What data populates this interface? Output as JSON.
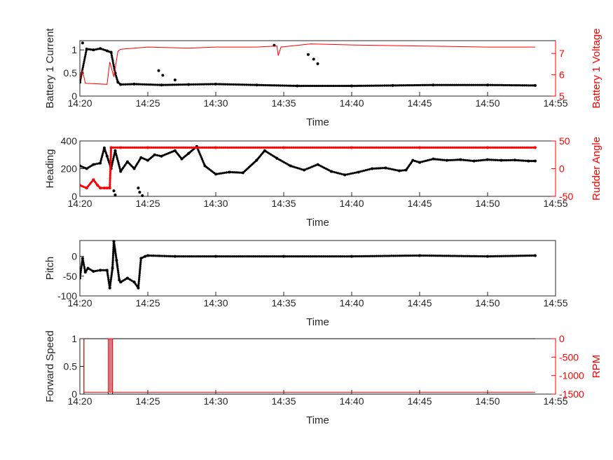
{
  "colors": {
    "left": "#000000",
    "right": "#ff0000",
    "axis": "#262626"
  },
  "chart_data": [
    {
      "type": "scatter",
      "xlabel": "Time",
      "xticks": [
        "14:20",
        "14:25",
        "14:30",
        "14:35",
        "14:40",
        "14:45",
        "14:50",
        "14:55"
      ],
      "xlim": [
        "14:20",
        "14:55"
      ],
      "left": {
        "ylabel": "Battery 1 Current",
        "ylim": [
          0,
          1.2
        ],
        "ticks": [
          0,
          0.5,
          1
        ],
        "ticklabels": [
          "0",
          "0.5",
          "1"
        ]
      },
      "right": {
        "ylabel": "Battery 1 Voltage",
        "ylim": [
          5,
          7.6
        ],
        "ticks": [
          5,
          6,
          7
        ],
        "ticklabels": [
          "5",
          "6",
          "7"
        ]
      },
      "series": [
        {
          "axis": "left",
          "style": "dots",
          "color": "#000000",
          "x": [
            "14:20",
            "14:20.5",
            "14:21",
            "14:21.5",
            "14:22",
            "14:22.3",
            "14:22.6",
            "14:22.8",
            "14:23",
            "14:24",
            "14:26",
            "14:28",
            "14:30",
            "14:33",
            "14:36",
            "14:40",
            "14:43",
            "14:46",
            "14:50",
            "14:53.5"
          ],
          "y": [
            0.3,
            1.02,
            1.0,
            1.03,
            0.98,
            0.95,
            0.5,
            0.3,
            0.25,
            0.26,
            0.24,
            0.25,
            0.26,
            0.24,
            0.22,
            0.22,
            0.23,
            0.24,
            0.24,
            0.23
          ]
        },
        {
          "axis": "left",
          "style": "scatter",
          "color": "#000000",
          "x": [
            "14:20.2",
            "14:25.8",
            "14:26.1",
            "14:27",
            "14:34.3",
            "14:36.8",
            "14:37.2",
            "14:37.5"
          ],
          "y": [
            1.15,
            0.55,
            0.45,
            0.35,
            1.1,
            0.9,
            0.8,
            0.7
          ]
        },
        {
          "axis": "right",
          "style": "line",
          "color": "#ff0000",
          "x": [
            "14:20",
            "14:20.2",
            "14:20.4",
            "14:22",
            "14:22.2",
            "14:22.5",
            "14:22.8",
            "14:23",
            "14:25",
            "14:28",
            "14:30",
            "14:33",
            "14:34.5",
            "14:34.6",
            "14:34.8",
            "14:37",
            "14:40",
            "14:45",
            "14:50",
            "14:53.5"
          ],
          "y": [
            5.8,
            6.2,
            5.6,
            5.55,
            6.6,
            5.9,
            7.1,
            7.2,
            7.3,
            7.25,
            7.3,
            7.3,
            7.35,
            6.9,
            7.3,
            7.45,
            7.4,
            7.35,
            7.3,
            7.3
          ]
        }
      ]
    },
    {
      "type": "scatter",
      "xlabel": "Time",
      "xticks": [
        "14:20",
        "14:25",
        "14:30",
        "14:35",
        "14:40",
        "14:45",
        "14:50",
        "14:55"
      ],
      "xlim": [
        "14:20",
        "14:55"
      ],
      "left": {
        "ylabel": "Heading",
        "ylim": [
          0,
          400
        ],
        "ticks": [
          0,
          200,
          400
        ],
        "ticklabels": [
          "0",
          "200",
          "400"
        ]
      },
      "right": {
        "ylabel": "Rudder Angle",
        "ylim": [
          -50,
          50
        ],
        "ticks": [
          -50,
          0,
          50
        ],
        "ticklabels": [
          "-50",
          "0",
          "50"
        ]
      },
      "series": [
        {
          "axis": "left",
          "style": "dots",
          "color": "#000000",
          "x": [
            "14:20",
            "14:20.5",
            "14:21",
            "14:21.5",
            "14:21.8",
            "14:22",
            "14:22.3",
            "14:22.6",
            "14:23",
            "14:23.5",
            "14:24",
            "14:24.5",
            "14:25",
            "14:25.5",
            "14:26",
            "14:27",
            "14:27.5",
            "14:28",
            "14:28.6",
            "14:29.2",
            "14:30",
            "14:31",
            "14:32",
            "14:33",
            "14:33.6",
            "14:34.5",
            "14:35.5",
            "14:36.5",
            "14:37.5",
            "14:38.5",
            "14:39.5",
            "14:40.5",
            "14:41.5",
            "14:42.5",
            "14:43.5",
            "14:44",
            "14:44.5",
            "14:45",
            "14:46",
            "14:47",
            "14:48",
            "14:49",
            "14:50",
            "14:51",
            "14:52",
            "14:53",
            "14:53.5"
          ],
          "y": [
            220,
            200,
            230,
            240,
            350,
            290,
            200,
            330,
            180,
            250,
            200,
            280,
            260,
            300,
            290,
            330,
            270,
            310,
            360,
            220,
            160,
            175,
            170,
            260,
            330,
            275,
            220,
            190,
            230,
            180,
            155,
            175,
            200,
            205,
            185,
            190,
            260,
            245,
            270,
            260,
            265,
            255,
            265,
            260,
            262,
            255,
            255
          ]
        },
        {
          "axis": "left",
          "style": "scatter",
          "color": "#000000",
          "x": [
            "14:22.5",
            "14:22.6",
            "14:24.3",
            "14:24.4",
            "14:24.6"
          ],
          "y": [
            40,
            10,
            60,
            30,
            5
          ]
        },
        {
          "axis": "right",
          "style": "dots",
          "color": "#ff0000",
          "x": [
            "14:20",
            "14:20.5",
            "14:21",
            "14:21.3",
            "14:21.5",
            "14:21.8",
            "14:22",
            "14:22.2",
            "14:22.3",
            "14:23",
            "14:25",
            "14:30",
            "14:35",
            "14:40",
            "14:45",
            "14:50",
            "14:53.5"
          ],
          "y": [
            -30,
            -35,
            -20,
            -30,
            -35,
            -35,
            -35,
            -35,
            38,
            38,
            38,
            38,
            38,
            38,
            38,
            38,
            38
          ]
        }
      ]
    },
    {
      "type": "scatter",
      "xlabel": "Time",
      "xticks": [
        "14:20",
        "14:25",
        "14:30",
        "14:35",
        "14:40",
        "14:45",
        "14:50",
        "14:55"
      ],
      "xlim": [
        "14:20",
        "14:55"
      ],
      "left": {
        "ylabel": "Pitch",
        "ylim": [
          -100,
          40
        ],
        "ticks": [
          -100,
          -50,
          0
        ],
        "ticklabels": [
          "-100",
          "-50",
          "0"
        ]
      },
      "series": [
        {
          "axis": "left",
          "style": "dots",
          "color": "#000000",
          "x": [
            "14:20",
            "14:20.2",
            "14:20.4",
            "14:20.6",
            "14:21",
            "14:21.5",
            "14:22",
            "14:22.2",
            "14:22.4",
            "14:22.5",
            "14:22.7",
            "14:22.9",
            "14:23",
            "14:23.5",
            "14:24",
            "14:24.3",
            "14:24.5",
            "14:24.8",
            "14:25",
            "14:27",
            "14:30",
            "14:35",
            "14:40",
            "14:45",
            "14:50",
            "14:53.5"
          ],
          "y": [
            -55,
            -5,
            -40,
            -30,
            -38,
            -35,
            -35,
            -80,
            -30,
            38,
            -10,
            -60,
            -65,
            -55,
            -65,
            -80,
            -5,
            0,
            2,
            0,
            0,
            0,
            0,
            2,
            0,
            2
          ]
        }
      ]
    },
    {
      "type": "line",
      "xlabel": "Time",
      "xticks": [
        "14:20",
        "14:25",
        "14:30",
        "14:35",
        "14:40",
        "14:45",
        "14:50",
        "14:55"
      ],
      "xlim": [
        "14:20",
        "14:55"
      ],
      "left": {
        "ylabel": "Forward Speed",
        "ylim": [
          0,
          1
        ],
        "ticks": [
          0,
          0.5,
          1
        ],
        "ticklabels": [
          "0",
          "0.5",
          "1"
        ]
      },
      "right": {
        "ylabel": "RPM",
        "ylim": [
          -1500,
          0
        ],
        "ticks": [
          -1500,
          -1000,
          -500,
          0
        ],
        "ticklabels": [
          "-1500",
          "-1000",
          "-500",
          "0"
        ]
      },
      "series": [
        {
          "axis": "left",
          "style": "line",
          "color": "#000000",
          "x": [
            "14:20",
            "14:20.3",
            "14:20.3",
            "14:22.1",
            "14:22.1",
            "14:22.4",
            "14:22.4",
            "14:53.5"
          ],
          "y": [
            0,
            0,
            1,
            1,
            0,
            0,
            1,
            1
          ]
        },
        {
          "axis": "left",
          "style": "line",
          "color": "#000000",
          "x": [
            "14:22.4",
            "14:53.5"
          ],
          "y": [
            0,
            0
          ]
        },
        {
          "axis": "right",
          "style": "line",
          "color": "#ff0000",
          "x": [
            "14:20",
            "14:20.3",
            "14:20.3",
            "14:22.1",
            "14:22.1",
            "14:22.2",
            "14:22.2",
            "14:22.3",
            "14:22.3",
            "14:22.4",
            "14:22.4",
            "14:53.5"
          ],
          "y": [
            0,
            0,
            -1450,
            -1450,
            0,
            0,
            -1450,
            -1450,
            0,
            0,
            -1450,
            -1450
          ]
        }
      ]
    }
  ]
}
